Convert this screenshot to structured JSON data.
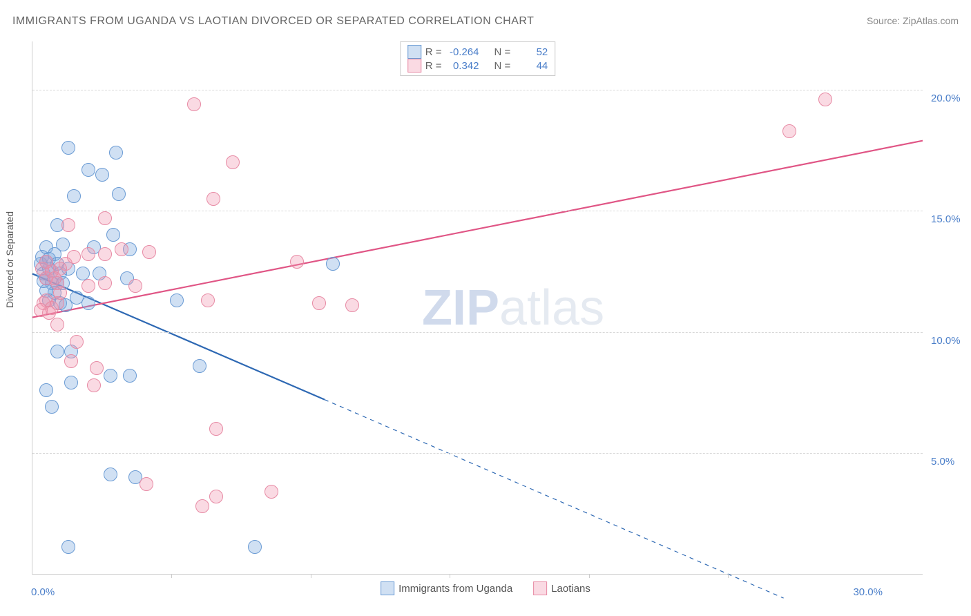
{
  "title": "IMMIGRANTS FROM UGANDA VS LAOTIAN DIVORCED OR SEPARATED CORRELATION CHART",
  "source": "Source: ZipAtlas.com",
  "watermark_zip": "ZIP",
  "watermark_atlas": "atlas",
  "chart": {
    "type": "scatter",
    "xlim": [
      0,
      32
    ],
    "ylim": [
      0,
      22
    ],
    "x_ticks": [
      0,
      5,
      10,
      15,
      20,
      25,
      30
    ],
    "x_tick_show_line": [
      false,
      true,
      true,
      true,
      true,
      true,
      false
    ],
    "x_tick_labels": {
      "0": "0.0%",
      "30": "30.0%"
    },
    "y_ticks": [
      5,
      10,
      15,
      20
    ],
    "y_tick_labels": {
      "5": "5.0%",
      "10": "10.0%",
      "15": "15.0%",
      "20": "20.0%"
    },
    "ylabel": "Divorced or Separated",
    "background_color": "#ffffff",
    "grid_color": "#d8d8d8",
    "axis_color": "#cccccc",
    "label_color": "#4a7ec9",
    "point_radius": 9,
    "point_stroke_width": 1.2,
    "series": [
      {
        "key": "uganda",
        "label": "Immigrants from Uganda",
        "fill": "rgba(120,165,220,0.35)",
        "stroke": "#6a9bd4",
        "line_color": "#2d68b3",
        "line_width": 2.2,
        "r_label": "R =",
        "r_value": "-0.264",
        "n_label": "N =",
        "n_value": "52",
        "trend": {
          "x1": 0,
          "y1": 12.4,
          "x2_solid": 10.5,
          "y2_solid": 7.2,
          "x2_dash": 27,
          "y2_dash": -1.0
        },
        "points": [
          [
            0.3,
            12.8
          ],
          [
            0.4,
            12.4
          ],
          [
            0.5,
            12.2
          ],
          [
            0.6,
            12.6
          ],
          [
            0.7,
            12.0
          ],
          [
            0.35,
            13.1
          ],
          [
            0.5,
            13.5
          ],
          [
            0.8,
            11.6
          ],
          [
            0.6,
            13.0
          ],
          [
            0.9,
            12.0
          ],
          [
            1.0,
            11.2
          ],
          [
            1.1,
            13.6
          ],
          [
            1.3,
            17.6
          ],
          [
            2.0,
            16.7
          ],
          [
            2.5,
            16.5
          ],
          [
            1.5,
            15.6
          ],
          [
            3.0,
            17.4
          ],
          [
            1.2,
            11.1
          ],
          [
            1.6,
            11.4
          ],
          [
            1.8,
            12.4
          ],
          [
            2.4,
            12.4
          ],
          [
            2.9,
            14.0
          ],
          [
            2.0,
            11.2
          ],
          [
            0.9,
            9.2
          ],
          [
            1.4,
            9.2
          ],
          [
            1.4,
            7.9
          ],
          [
            2.8,
            8.2
          ],
          [
            3.5,
            8.2
          ],
          [
            3.5,
            13.4
          ],
          [
            0.5,
            7.6
          ],
          [
            0.7,
            6.9
          ],
          [
            2.8,
            4.1
          ],
          [
            3.7,
            4.0
          ],
          [
            1.3,
            1.1
          ],
          [
            8.0,
            1.1
          ],
          [
            5.2,
            11.3
          ],
          [
            6.0,
            8.6
          ],
          [
            10.8,
            12.8
          ],
          [
            3.4,
            12.2
          ],
          [
            2.2,
            13.5
          ],
          [
            0.9,
            14.4
          ],
          [
            3.1,
            15.7
          ],
          [
            0.5,
            11.7
          ],
          [
            0.6,
            11.3
          ],
          [
            0.8,
            13.2
          ],
          [
            0.4,
            12.1
          ],
          [
            0.5,
            12.9
          ],
          [
            0.7,
            12.5
          ],
          [
            0.9,
            12.8
          ],
          [
            1.0,
            12.4
          ],
          [
            1.1,
            12.0
          ],
          [
            1.3,
            12.6
          ]
        ]
      },
      {
        "key": "laotian",
        "label": "Laotians",
        "fill": "rgba(240,150,175,0.35)",
        "stroke": "#e78aa4",
        "line_color": "#e05585",
        "line_width": 2.2,
        "r_label": "R =",
        "r_value": "0.342",
        "n_label": "N =",
        "n_value": "44",
        "trend": {
          "x1": 0,
          "y1": 10.6,
          "x2_solid": 32,
          "y2_solid": 17.9,
          "x2_dash": 32,
          "y2_dash": 17.9
        },
        "points": [
          [
            0.35,
            12.6
          ],
          [
            0.5,
            12.2
          ],
          [
            0.7,
            12.5
          ],
          [
            0.9,
            12.0
          ],
          [
            0.4,
            11.2
          ],
          [
            0.5,
            11.3
          ],
          [
            0.7,
            11.0
          ],
          [
            0.9,
            11.2
          ],
          [
            1.0,
            11.6
          ],
          [
            0.6,
            10.8
          ],
          [
            0.3,
            10.9
          ],
          [
            0.9,
            10.3
          ],
          [
            0.5,
            12.9
          ],
          [
            1.2,
            12.8
          ],
          [
            1.5,
            13.1
          ],
          [
            2.0,
            13.2
          ],
          [
            2.6,
            13.2
          ],
          [
            3.2,
            13.4
          ],
          [
            4.2,
            13.3
          ],
          [
            2.6,
            14.7
          ],
          [
            1.3,
            14.4
          ],
          [
            2.0,
            11.9
          ],
          [
            2.6,
            12.0
          ],
          [
            3.7,
            11.9
          ],
          [
            6.3,
            11.3
          ],
          [
            7.2,
            17.0
          ],
          [
            5.8,
            19.4
          ],
          [
            6.5,
            15.5
          ],
          [
            9.5,
            12.9
          ],
          [
            10.3,
            11.2
          ],
          [
            11.5,
            11.1
          ],
          [
            1.6,
            9.6
          ],
          [
            2.3,
            8.5
          ],
          [
            2.2,
            7.8
          ],
          [
            1.4,
            8.8
          ],
          [
            6.6,
            6.0
          ],
          [
            8.6,
            3.4
          ],
          [
            6.6,
            3.2
          ],
          [
            6.1,
            2.8
          ],
          [
            4.1,
            3.7
          ],
          [
            27.2,
            18.3
          ],
          [
            28.5,
            19.6
          ],
          [
            1.0,
            12.6
          ],
          [
            0.8,
            12.2
          ]
        ]
      }
    ]
  },
  "legend_bottom": [
    {
      "swatch_fill": "rgba(120,165,220,0.35)",
      "swatch_stroke": "#6a9bd4",
      "label": "Immigrants from Uganda"
    },
    {
      "swatch_fill": "rgba(240,150,175,0.35)",
      "swatch_stroke": "#e78aa4",
      "label": "Laotians"
    }
  ]
}
